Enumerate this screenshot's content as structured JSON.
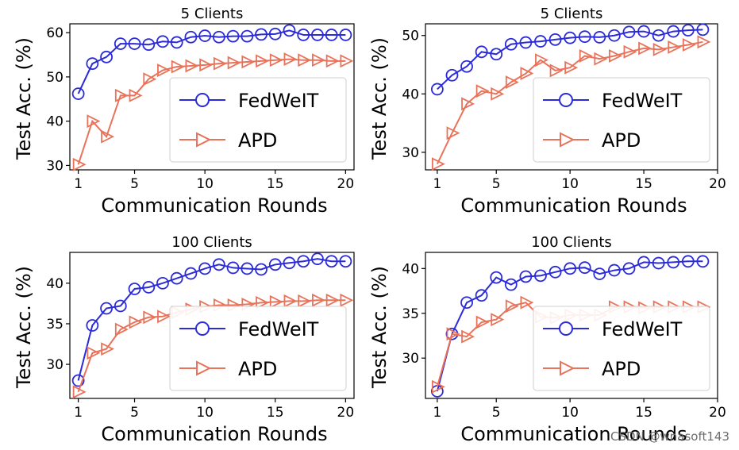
{
  "watermark": "CSDN @wnasoft143",
  "colors": {
    "fedweit": "#2b2bd9",
    "apd": "#e9735a",
    "axis": "#000000"
  },
  "chart_data": [
    {
      "type": "line",
      "title": "5 Clients",
      "xlabel": "Communication Rounds",
      "ylabel": "Test Acc. (%)",
      "xlim": [
        0.4,
        20.6
      ],
      "ylim": [
        29,
        62
      ],
      "xticks": [
        1,
        5,
        10,
        15,
        20
      ],
      "yticks": [
        30,
        40,
        50,
        60
      ],
      "legend_position": "lower-right",
      "series": [
        {
          "name": "FedWeIT",
          "marker": "circle",
          "color": "#2b2bd9",
          "x": [
            1,
            2,
            3,
            4,
            5,
            6,
            7,
            8,
            9,
            10,
            11,
            12,
            13,
            14,
            15,
            16,
            17,
            18,
            19,
            20
          ],
          "y": [
            46.2,
            53.0,
            54.5,
            57.5,
            57.5,
            57.3,
            58.0,
            57.8,
            59.0,
            59.3,
            59.0,
            59.2,
            59.2,
            59.6,
            59.7,
            60.5,
            59.5,
            59.5,
            59.5,
            59.5
          ]
        },
        {
          "name": "APD",
          "marker": "triangle-right",
          "color": "#e9735a",
          "x": [
            1,
            2,
            3,
            4,
            5,
            6,
            7,
            8,
            9,
            10,
            11,
            12,
            13,
            14,
            15,
            16,
            17,
            18,
            19,
            20
          ],
          "y": [
            30.2,
            40.0,
            36.5,
            45.8,
            45.8,
            49.5,
            51.5,
            52.3,
            52.5,
            52.7,
            53.0,
            53.2,
            53.4,
            53.6,
            53.8,
            54.0,
            53.8,
            53.8,
            53.6,
            53.6
          ]
        }
      ]
    },
    {
      "type": "line",
      "title": "5 Clients",
      "xlabel": "Communication Rounds",
      "ylabel": "Test Acc. (%)",
      "xlim": [
        0.2,
        20
      ],
      "ylim": [
        27,
        52
      ],
      "xticks": [
        1,
        5,
        10,
        15,
        20
      ],
      "yticks": [
        30,
        40,
        50
      ],
      "legend_position": "lower-right",
      "series": [
        {
          "name": "FedWeIT",
          "marker": "circle",
          "color": "#2b2bd9",
          "x": [
            1,
            2,
            3,
            4,
            5,
            6,
            7,
            8,
            9,
            10,
            11,
            12,
            13,
            14,
            15,
            16,
            17,
            18,
            19
          ],
          "y": [
            40.8,
            43.2,
            44.7,
            47.2,
            46.8,
            48.5,
            48.8,
            49.0,
            49.3,
            49.6,
            49.8,
            49.7,
            50.0,
            50.6,
            50.7,
            50.0,
            50.7,
            50.9,
            51.0
          ]
        },
        {
          "name": "APD",
          "marker": "triangle-right",
          "color": "#e9735a",
          "x": [
            1,
            2,
            3,
            4,
            5,
            6,
            7,
            8,
            9,
            10,
            11,
            12,
            13,
            14,
            15,
            16,
            17,
            18,
            19
          ],
          "y": [
            28.0,
            33.3,
            38.3,
            40.5,
            40.0,
            42.0,
            43.5,
            45.8,
            44.0,
            44.5,
            46.5,
            46.0,
            46.5,
            47.2,
            47.8,
            47.6,
            48.0,
            48.4,
            48.9
          ]
        }
      ]
    },
    {
      "type": "line",
      "title": "100 Clients",
      "xlabel": "Communication Rounds",
      "ylabel": "Test Acc. (%)",
      "xlim": [
        0.4,
        20.6
      ],
      "ylim": [
        25.8,
        43.8
      ],
      "xticks": [
        1,
        5,
        10,
        15,
        20
      ],
      "yticks": [
        30,
        35,
        40
      ],
      "legend_position": "lower-right",
      "series": [
        {
          "name": "FedWeIT",
          "marker": "circle",
          "color": "#2b2bd9",
          "x": [
            1,
            2,
            3,
            4,
            5,
            6,
            7,
            8,
            9,
            10,
            11,
            12,
            13,
            14,
            15,
            16,
            17,
            18,
            19,
            20
          ],
          "y": [
            28.0,
            34.8,
            36.9,
            37.2,
            39.3,
            39.5,
            40.0,
            40.6,
            41.2,
            41.8,
            42.3,
            41.9,
            41.8,
            41.7,
            42.3,
            42.5,
            42.7,
            43.0,
            42.7,
            42.7
          ]
        },
        {
          "name": "APD",
          "marker": "triangle-right",
          "color": "#e9735a",
          "x": [
            1,
            2,
            3,
            4,
            5,
            6,
            7,
            8,
            9,
            10,
            11,
            12,
            13,
            14,
            15,
            16,
            17,
            18,
            19,
            20
          ],
          "y": [
            26.6,
            31.4,
            31.9,
            34.3,
            35.2,
            35.8,
            35.9,
            36.4,
            36.8,
            37.1,
            37.3,
            37.3,
            37.4,
            37.6,
            37.7,
            37.8,
            37.8,
            37.9,
            37.9,
            37.9
          ]
        }
      ]
    },
    {
      "type": "line",
      "title": "100 Clients",
      "xlabel": "Communication Rounds",
      "ylabel": "Test Acc. (%)",
      "xlim": [
        0.2,
        20
      ],
      "ylim": [
        25.5,
        41.8
      ],
      "xticks": [
        1,
        5,
        10,
        15,
        20
      ],
      "yticks": [
        30,
        35,
        40
      ],
      "legend_position": "lower-right",
      "series": [
        {
          "name": "FedWeIT",
          "marker": "circle",
          "color": "#2b2bd9",
          "x": [
            1,
            2,
            3,
            4,
            5,
            6,
            7,
            8,
            9,
            10,
            11,
            12,
            13,
            14,
            15,
            16,
            17,
            18,
            19
          ],
          "y": [
            26.3,
            32.7,
            36.2,
            37.0,
            39.0,
            38.2,
            39.1,
            39.2,
            39.6,
            40.0,
            40.1,
            39.4,
            39.8,
            40.0,
            40.7,
            40.6,
            40.7,
            40.8,
            40.8
          ]
        },
        {
          "name": "APD",
          "marker": "triangle-right",
          "color": "#e9735a",
          "x": [
            1,
            2,
            3,
            4,
            5,
            6,
            7,
            8,
            9,
            10,
            11,
            12,
            13,
            14,
            15,
            16,
            17,
            18,
            19
          ],
          "y": [
            26.8,
            32.7,
            32.4,
            34.0,
            34.3,
            35.8,
            36.2,
            34.6,
            34.5,
            34.8,
            34.8,
            34.8,
            35.7,
            35.7,
            35.6,
            35.7,
            35.7,
            35.7,
            35.7
          ]
        }
      ]
    }
  ]
}
